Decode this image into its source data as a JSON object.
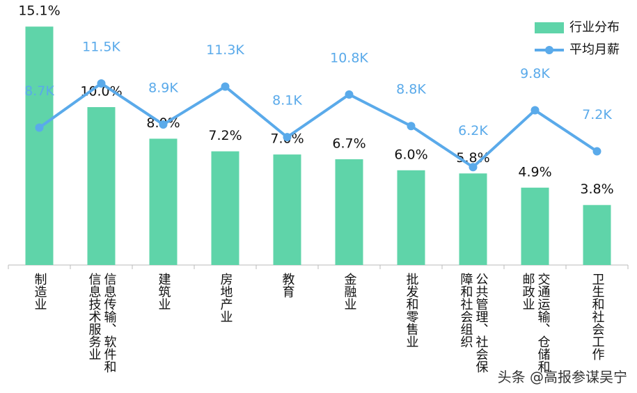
{
  "chart_data": {
    "type": "bar-line",
    "categories": [
      "制造业",
      "信息传输、软件和信息技术服务业",
      "建筑业",
      "房地产业",
      "教育",
      "金融业",
      "批发和零售业",
      "公共管理、社会保障和社会组织",
      "交通运输、仓储和邮政业",
      "卫生和社会工作"
    ],
    "series": [
      {
        "name": "行业分布",
        "type": "bar",
        "color": "#5fd4a9",
        "values": [
          15.1,
          10.0,
          8.0,
          7.2,
          7.0,
          6.7,
          6.0,
          5.8,
          4.9,
          3.8
        ],
        "value_labels": [
          "15.1%",
          "10.0%",
          "8.0%",
          "7.2%",
          "7.0%",
          "6.7%",
          "6.0%",
          "5.8%",
          "4.9%",
          "3.8%"
        ]
      },
      {
        "name": "平均月薪",
        "type": "line",
        "color": "#5aaaea",
        "values": [
          8.7,
          11.5,
          8.9,
          11.3,
          8.1,
          10.8,
          8.8,
          6.2,
          9.8,
          7.2
        ],
        "value_labels": [
          "8.7K",
          "11.5K",
          "8.9K",
          "11.3K",
          "8.1K",
          "10.8K",
          "8.8K",
          "6.2K",
          "9.8K",
          "7.2K"
        ]
      }
    ],
    "watermark": "头条 @高报参谋吴宁"
  }
}
